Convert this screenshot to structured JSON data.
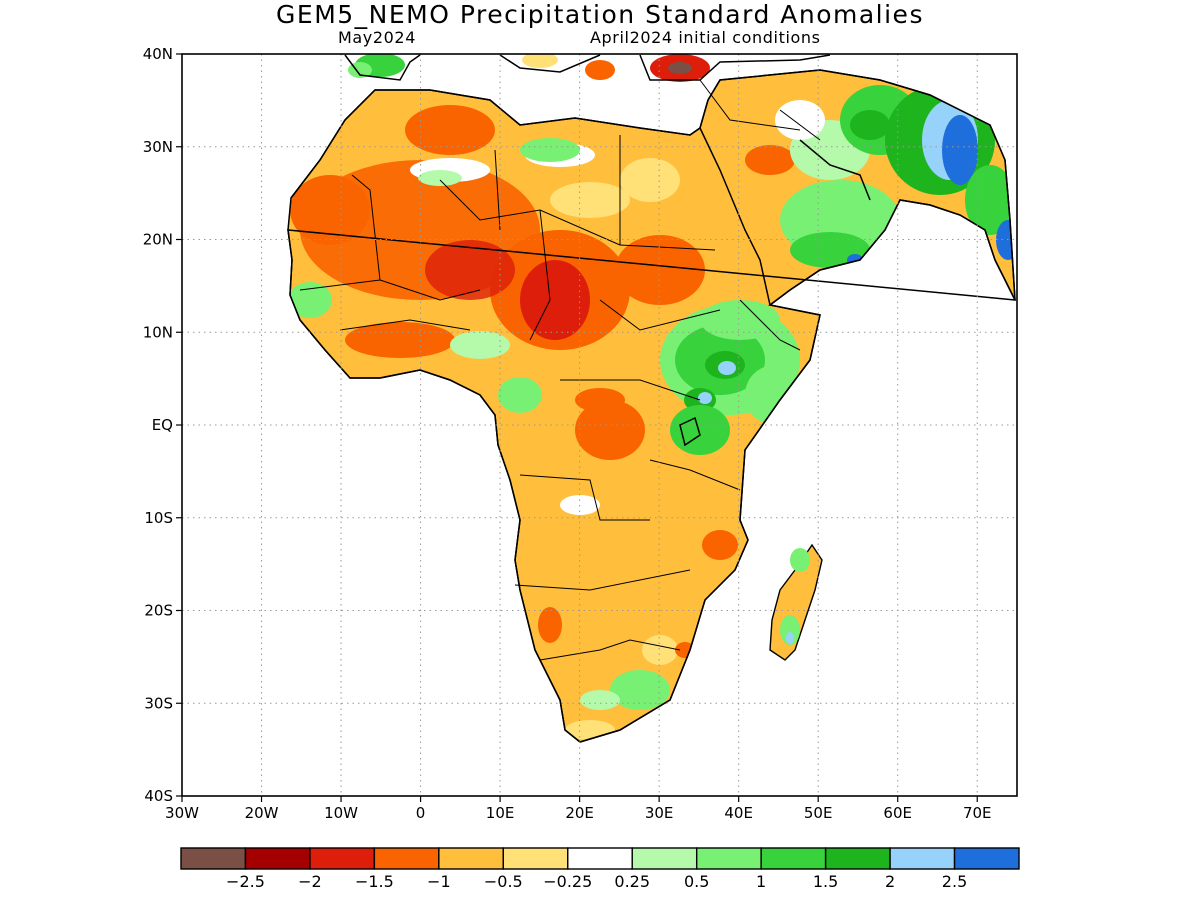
{
  "title": "GEM5_NEMO Precipitation Standard Anomalies",
  "subtitle_left": "May2024",
  "subtitle_right": "April2024 initial conditions",
  "map": {
    "lon_range": [
      -30,
      75
    ],
    "lat_range": [
      -40,
      40
    ],
    "lat_ticks": [
      {
        "value": 40,
        "label": "40N"
      },
      {
        "value": 30,
        "label": "30N"
      },
      {
        "value": 20,
        "label": "20N"
      },
      {
        "value": 10,
        "label": "10N"
      },
      {
        "value": 0,
        "label": "EQ"
      },
      {
        "value": -10,
        "label": "10S"
      },
      {
        "value": -20,
        "label": "20S"
      },
      {
        "value": -30,
        "label": "30S"
      },
      {
        "value": -40,
        "label": "40S"
      }
    ],
    "lon_ticks": [
      {
        "value": -30,
        "label": "30W"
      },
      {
        "value": -20,
        "label": "20W"
      },
      {
        "value": -10,
        "label": "10W"
      },
      {
        "value": 0,
        "label": "0"
      },
      {
        "value": 10,
        "label": "10E"
      },
      {
        "value": 20,
        "label": "20E"
      },
      {
        "value": 30,
        "label": "30E"
      },
      {
        "value": 40,
        "label": "40E"
      },
      {
        "value": 50,
        "label": "50E"
      },
      {
        "value": 60,
        "label": "60E"
      },
      {
        "value": 70,
        "label": "70E"
      }
    ],
    "gridlines": "dotted"
  },
  "colorbar": {
    "colors": [
      "#7a5046",
      "#a50000",
      "#dc1e0a",
      "#fa6400",
      "#ffbe3c",
      "#ffe178",
      "#ffffff",
      "#b4faaa",
      "#78f073",
      "#37d23c",
      "#1eb41e",
      "#96d2fa",
      "#1e6edc"
    ],
    "labels": [
      "−2.5",
      "−2",
      "−1.5",
      "−1",
      "−0.5",
      "−0.25",
      "0.25",
      "0.5",
      "1",
      "1.5",
      "2",
      "2.5"
    ]
  }
}
